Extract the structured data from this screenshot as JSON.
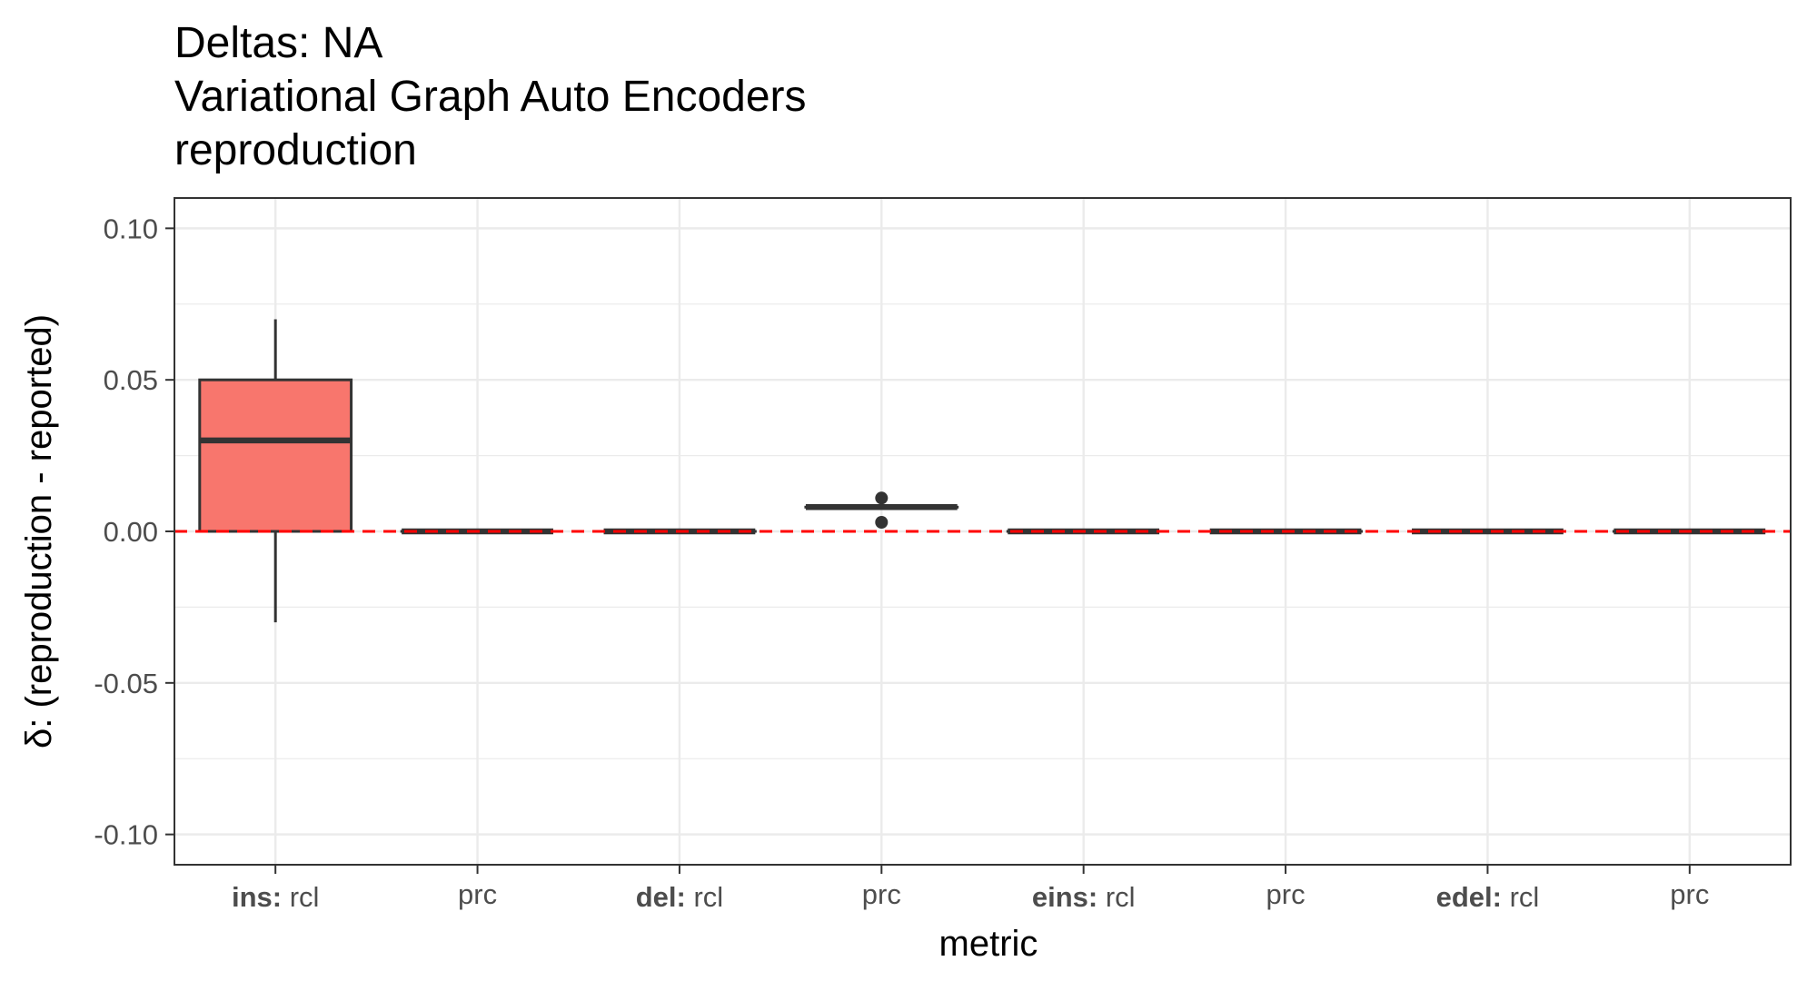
{
  "chart_data": {
    "type": "boxplot",
    "title_lines": [
      "Deltas: NA",
      "Variational Graph Auto Encoders",
      "reproduction"
    ],
    "xlabel": "metric",
    "ylabel": "δ: (reproduction - reported)",
    "ylim": [
      -0.11,
      0.11
    ],
    "yticks": [
      "0.10",
      "0.05",
      "0.00",
      "-0.05",
      "-0.10"
    ],
    "ytick_values": [
      0.1,
      0.05,
      0.0,
      -0.05,
      -0.1
    ],
    "grid": true,
    "reference_line": {
      "y": 0.0,
      "color": "#ff0000",
      "style": "dashed"
    },
    "categories": [
      {
        "group": "ins:",
        "metric": "rcl"
      },
      {
        "group": "",
        "metric": "prc"
      },
      {
        "group": "del:",
        "metric": "rcl"
      },
      {
        "group": "",
        "metric": "prc"
      },
      {
        "group": "eins:",
        "metric": "rcl"
      },
      {
        "group": "",
        "metric": "prc"
      },
      {
        "group": "edel:",
        "metric": "rcl"
      },
      {
        "group": "",
        "metric": "prc"
      }
    ],
    "boxes": [
      {
        "min": -0.03,
        "q1": 0.0,
        "median": 0.03,
        "q3": 0.05,
        "max": 0.07,
        "outliers": [],
        "fill": "#f8766d"
      },
      {
        "min": 0.0,
        "q1": 0.0,
        "median": 0.0,
        "q3": 0.0,
        "max": 0.0,
        "outliers": [],
        "fill": "#ffffff"
      },
      {
        "min": 0.0,
        "q1": 0.0,
        "median": 0.0,
        "q3": 0.0,
        "max": 0.0,
        "outliers": [],
        "fill": "#ffffff"
      },
      {
        "min": 0.008,
        "q1": 0.008,
        "median": 0.008,
        "q3": 0.008,
        "max": 0.008,
        "outliers": [
          0.011,
          0.003
        ],
        "fill": "#ffffff"
      },
      {
        "min": 0.0,
        "q1": 0.0,
        "median": 0.0,
        "q3": 0.0,
        "max": 0.0,
        "outliers": [],
        "fill": "#ffffff"
      },
      {
        "min": 0.0,
        "q1": 0.0,
        "median": 0.0,
        "q3": 0.0,
        "max": 0.0,
        "outliers": [],
        "fill": "#ffffff"
      },
      {
        "min": 0.0,
        "q1": 0.0,
        "median": 0.0,
        "q3": 0.0,
        "max": 0.0,
        "outliers": [],
        "fill": "#ffffff"
      },
      {
        "min": 0.0,
        "q1": 0.0,
        "median": 0.0,
        "q3": 0.0,
        "max": 0.0,
        "outliers": [],
        "fill": "#ffffff"
      }
    ]
  }
}
